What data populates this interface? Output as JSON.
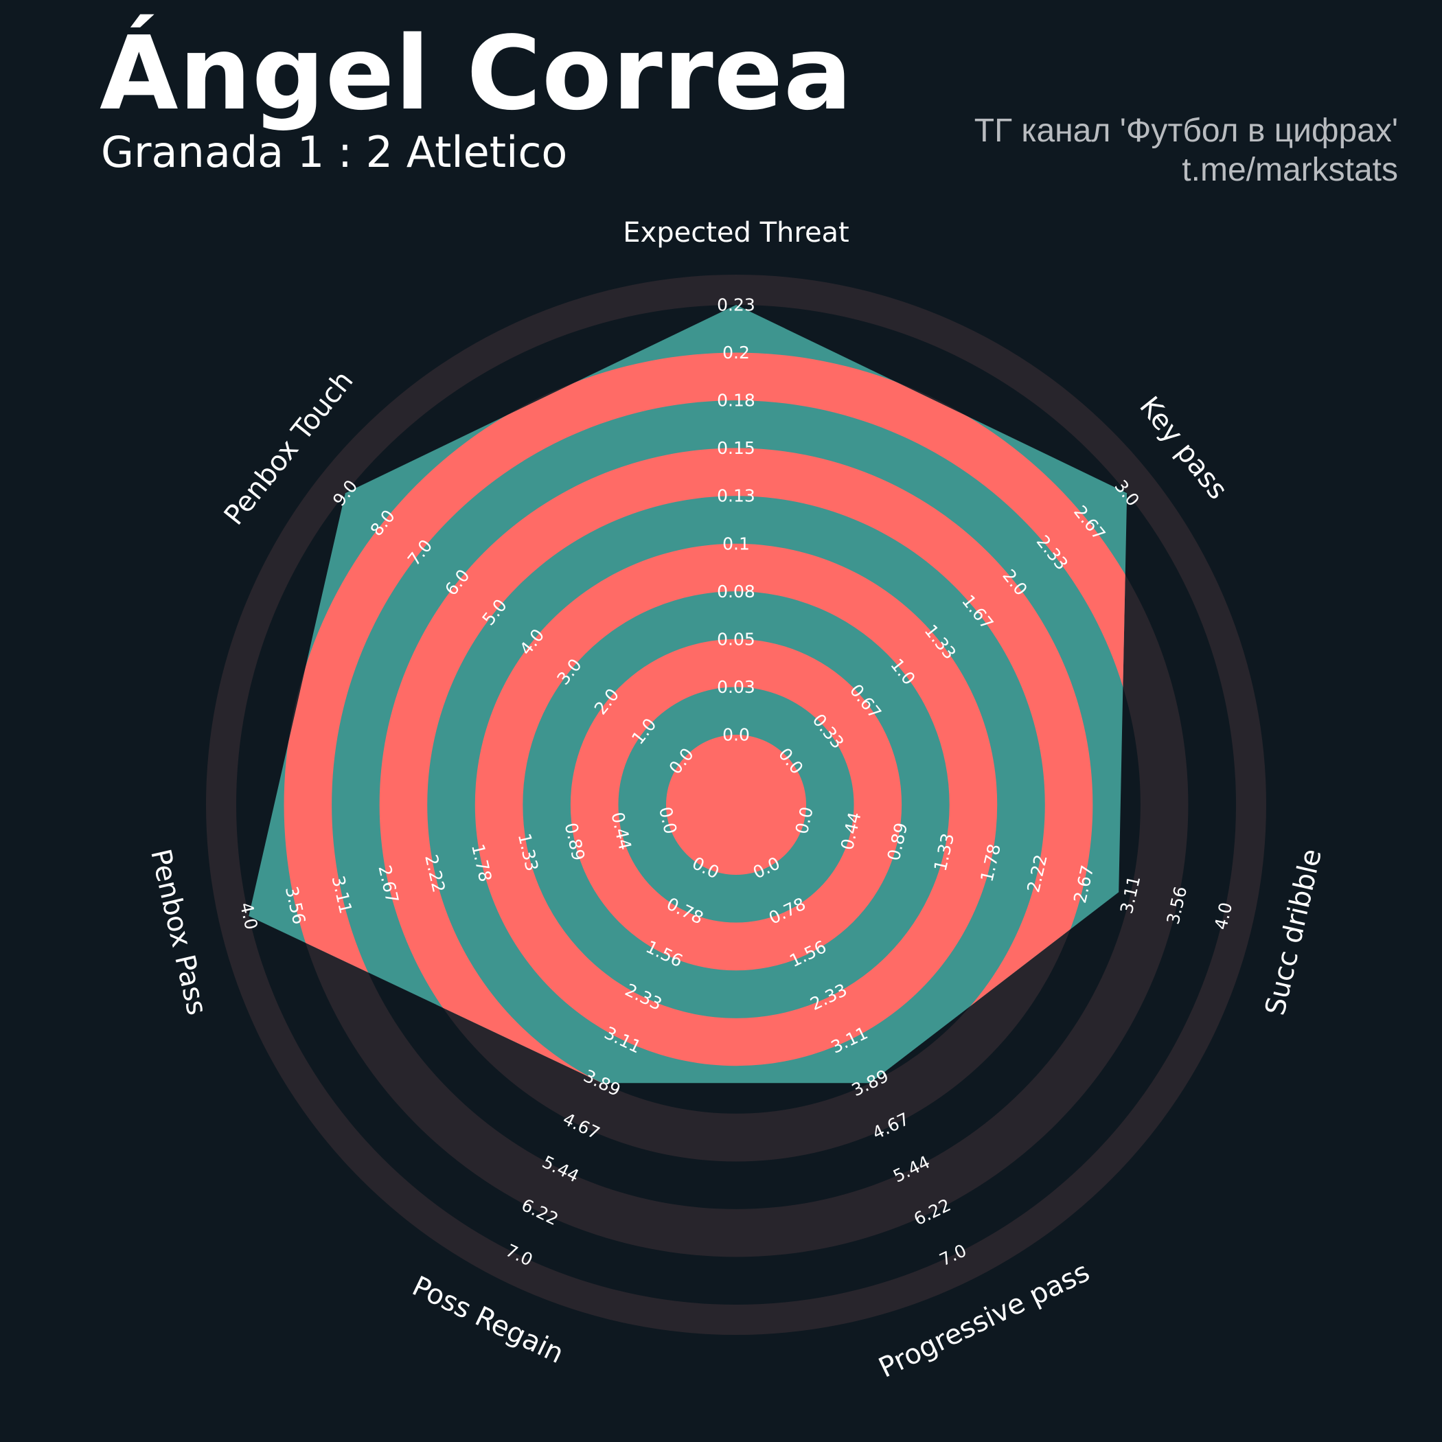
{
  "header": {
    "title": "Ángel Correa",
    "subtitle": "Granada 1 : 2 Atletico",
    "credit_line1": "ТГ канал 'Футбол в цифрах'",
    "credit_line2": "t.me/markstats"
  },
  "colors": {
    "background": "#0e1820",
    "outer_rings": "#28252c",
    "player_fill": "#3e958f",
    "inner_rings": "#ff6b66",
    "text": "#ffffff",
    "credit": "#b9bcc0"
  },
  "chart_data": {
    "type": "radar",
    "title": "Ángel Correa",
    "grid": "alternating rings",
    "params": [
      {
        "name": "Expected Threat",
        "ticks": [
          "0.0",
          "0.03",
          "0.05",
          "0.08",
          "0.1",
          "0.13",
          "0.15",
          "0.18",
          "0.2",
          "0.23"
        ],
        "min": 0.0,
        "max": 0.23,
        "value": 0.23
      },
      {
        "name": "Key pass",
        "ticks": [
          "0.0",
          "0.33",
          "0.67",
          "1.0",
          "1.33",
          "1.67",
          "2.0",
          "2.33",
          "2.67",
          "3.0"
        ],
        "min": 0.0,
        "max": 3.0,
        "value": 3.0
      },
      {
        "name": "Succ dribble",
        "ticks": [
          "0.0",
          "0.44",
          "0.89",
          "1.33",
          "1.78",
          "2.22",
          "2.67",
          "3.11",
          "3.56",
          "4.0"
        ],
        "min": 0.0,
        "max": 4.0,
        "value": 3.0
      },
      {
        "name": "Progressive pass",
        "ticks": [
          "0.0",
          "0.78",
          "1.56",
          "2.33",
          "3.11",
          "3.89",
          "4.67",
          "5.44",
          "6.22",
          "7.0"
        ],
        "min": 0.0,
        "max": 7.0,
        "value": 3.89
      },
      {
        "name": "Poss Regain",
        "ticks": [
          "0.0",
          "0.78",
          "1.56",
          "2.33",
          "3.11",
          "3.89",
          "4.67",
          "5.44",
          "6.22",
          "7.0"
        ],
        "min": 0.0,
        "max": 7.0,
        "value": 3.89
      },
      {
        "name": "Penbox Pass",
        "ticks": [
          "0.0",
          "0.44",
          "0.89",
          "1.33",
          "1.78",
          "2.22",
          "2.67",
          "3.11",
          "3.56",
          "4.0"
        ],
        "min": 0.0,
        "max": 4.0,
        "value": 4.0
      },
      {
        "name": "Penbox Touch",
        "ticks": [
          "0.0",
          "1.0",
          "2.0",
          "3.0",
          "4.0",
          "5.0",
          "6.0",
          "7.0",
          "8.0",
          "9.0"
        ],
        "min": 0.0,
        "max": 9.0,
        "value": 9.0
      }
    ]
  }
}
